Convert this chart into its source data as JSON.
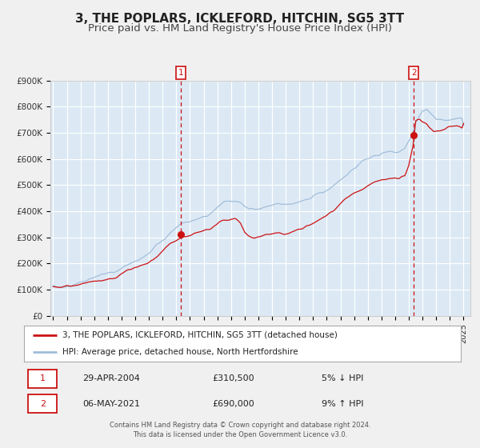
{
  "title": "3, THE POPLARS, ICKLEFORD, HITCHIN, SG5 3TT",
  "subtitle": "Price paid vs. HM Land Registry's House Price Index (HPI)",
  "bg_color": "#f0f0f0",
  "plot_bg_color": "#dce9f5",
  "grid_color": "#ffffff",
  "hpi_color": "#a0bcd8",
  "price_color": "#cc1111",
  "ylim": [
    0,
    900000
  ],
  "yticks": [
    0,
    100000,
    200000,
    300000,
    400000,
    500000,
    600000,
    700000,
    800000,
    900000
  ],
  "ytick_labels": [
    "£0",
    "£100K",
    "£200K",
    "£300K",
    "£400K",
    "£500K",
    "£600K",
    "£700K",
    "£800K",
    "£900K"
  ],
  "xlim_start": 1994.8,
  "xlim_end": 2025.5,
  "xticks": [
    1995,
    1996,
    1997,
    1998,
    1999,
    2000,
    2001,
    2002,
    2003,
    2004,
    2005,
    2006,
    2007,
    2008,
    2009,
    2010,
    2011,
    2012,
    2013,
    2014,
    2015,
    2016,
    2017,
    2018,
    2019,
    2020,
    2021,
    2022,
    2023,
    2024,
    2025
  ],
  "marker1_x": 2004.33,
  "marker1_y": 310500,
  "marker2_x": 2021.37,
  "marker2_y": 690000,
  "legend_line1": "3, THE POPLARS, ICKLEFORD, HITCHIN, SG5 3TT (detached house)",
  "legend_line2": "HPI: Average price, detached house, North Hertfordshire",
  "table_row1": [
    "1",
    "29-APR-2004",
    "£310,500",
    "5% ↓ HPI"
  ],
  "table_row2": [
    "2",
    "06-MAY-2021",
    "£690,000",
    "9% ↑ HPI"
  ],
  "footer": "Contains HM Land Registry data © Crown copyright and database right 2024.\nThis data is licensed under the Open Government Licence v3.0.",
  "title_fontsize": 11,
  "subtitle_fontsize": 9.5,
  "hpi_key_years": [
    1995.0,
    1995.5,
    1996.0,
    1996.5,
    1997.0,
    1997.5,
    1998.0,
    1998.5,
    1999.0,
    1999.5,
    2000.0,
    2000.5,
    2001.0,
    2001.5,
    2002.0,
    2002.5,
    2003.0,
    2003.5,
    2004.0,
    2004.5,
    2005.0,
    2005.5,
    2006.0,
    2006.5,
    2007.0,
    2007.5,
    2008.0,
    2008.3,
    2008.7,
    2009.0,
    2009.3,
    2009.7,
    2010.0,
    2010.5,
    2011.0,
    2011.5,
    2012.0,
    2012.5,
    2013.0,
    2013.5,
    2014.0,
    2014.5,
    2015.0,
    2015.5,
    2016.0,
    2016.5,
    2017.0,
    2017.5,
    2018.0,
    2018.5,
    2019.0,
    2019.5,
    2020.0,
    2020.3,
    2020.7,
    2021.0,
    2021.3,
    2021.5,
    2021.8,
    2022.0,
    2022.3,
    2022.5,
    2022.8,
    2023.0,
    2023.5,
    2024.0,
    2024.5,
    2025.0
  ],
  "hpi_key_vals": [
    115000,
    115000,
    118000,
    122000,
    130000,
    137000,
    145000,
    152000,
    162000,
    172000,
    185000,
    200000,
    215000,
    226000,
    240000,
    258000,
    275000,
    295000,
    318000,
    328000,
    333000,
    340000,
    350000,
    362000,
    378000,
    393000,
    398000,
    400000,
    388000,
    370000,
    358000,
    355000,
    360000,
    368000,
    375000,
    378000,
    378000,
    382000,
    390000,
    398000,
    408000,
    420000,
    432000,
    448000,
    468000,
    488000,
    510000,
    525000,
    542000,
    553000,
    565000,
    572000,
    575000,
    578000,
    590000,
    625000,
    660000,
    695000,
    720000,
    735000,
    740000,
    728000,
    715000,
    700000,
    695000,
    698000,
    700000,
    700000
  ],
  "price_key_years": [
    1995.0,
    1995.5,
    1996.0,
    1996.5,
    1997.0,
    1997.5,
    1998.0,
    1998.5,
    1999.0,
    1999.5,
    2000.0,
    2000.5,
    2001.0,
    2001.5,
    2002.0,
    2002.5,
    2003.0,
    2003.5,
    2004.0,
    2004.5,
    2005.0,
    2005.5,
    2006.0,
    2006.5,
    2007.0,
    2007.5,
    2008.0,
    2008.3,
    2008.7,
    2009.0,
    2009.3,
    2009.7,
    2010.0,
    2010.5,
    2011.0,
    2011.5,
    2012.0,
    2012.5,
    2013.0,
    2013.5,
    2014.0,
    2014.5,
    2015.0,
    2015.5,
    2016.0,
    2016.5,
    2017.0,
    2017.5,
    2018.0,
    2018.5,
    2019.0,
    2019.5,
    2020.0,
    2020.3,
    2020.7,
    2021.0,
    2021.3,
    2021.5,
    2021.8,
    2022.0,
    2022.3,
    2022.5,
    2022.8,
    2023.0,
    2023.5,
    2024.0,
    2024.5,
    2025.0
  ],
  "price_key_vals": [
    112000,
    112000,
    115000,
    119000,
    126000,
    133000,
    142000,
    149000,
    159000,
    168000,
    180000,
    195000,
    208000,
    220000,
    232000,
    250000,
    268000,
    290000,
    310000,
    322000,
    328000,
    335000,
    345000,
    356000,
    370000,
    385000,
    390000,
    392000,
    378000,
    342000,
    333000,
    330000,
    338000,
    346000,
    355000,
    360000,
    360000,
    366000,
    376000,
    385000,
    395000,
    408000,
    418000,
    432000,
    452000,
    472000,
    490000,
    505000,
    522000,
    537000,
    550000,
    558000,
    560000,
    562000,
    575000,
    615000,
    690000,
    790000,
    800000,
    790000,
    780000,
    765000,
    755000,
    755000,
    762000,
    768000,
    770000,
    760000
  ]
}
